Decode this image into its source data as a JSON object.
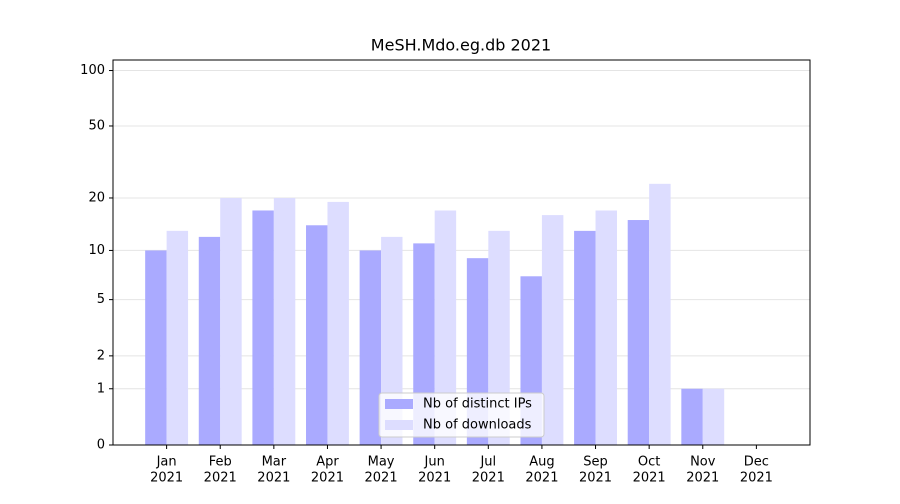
{
  "chart_data": {
    "type": "bar",
    "title": "MeSH.Mdo.eg.db 2021",
    "categories": [
      [
        "Jan",
        "2021"
      ],
      [
        "Feb",
        "2021"
      ],
      [
        "Mar",
        "2021"
      ],
      [
        "Apr",
        "2021"
      ],
      [
        "May",
        "2021"
      ],
      [
        "Jun",
        "2021"
      ],
      [
        "Jul",
        "2021"
      ],
      [
        "Aug",
        "2021"
      ],
      [
        "Sep",
        "2021"
      ],
      [
        "Oct",
        "2021"
      ],
      [
        "Nov",
        "2021"
      ],
      [
        "Dec",
        "2021"
      ]
    ],
    "series": [
      {
        "name": "Nb of distinct IPs",
        "color": "#aaaaff",
        "values": [
          10,
          12,
          17,
          14,
          10,
          11,
          9,
          7,
          13,
          15,
          1,
          0
        ]
      },
      {
        "name": "Nb of downloads",
        "color": "#ddddff",
        "values": [
          13,
          20,
          20,
          19,
          12,
          17,
          13,
          16,
          17,
          24,
          1,
          0
        ]
      }
    ],
    "yscale": "log1p",
    "ylim": [
      0,
      114
    ],
    "yticks": [
      0,
      1,
      2,
      5,
      10,
      20,
      50,
      100
    ],
    "grid": true,
    "legend": "lower center"
  }
}
